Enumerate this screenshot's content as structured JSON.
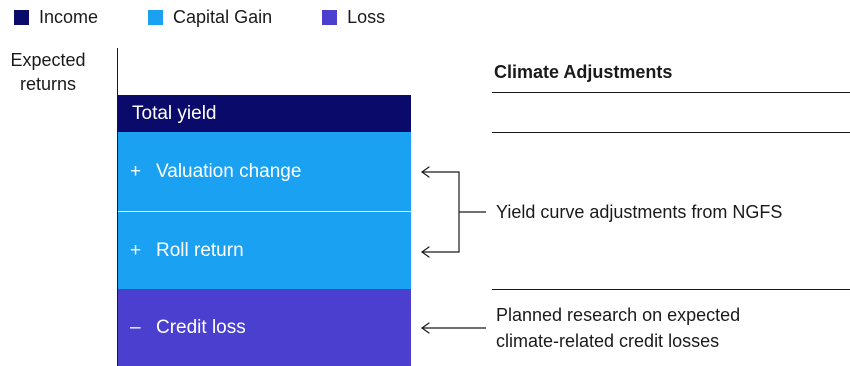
{
  "legend": {
    "items": [
      {
        "label": "Income",
        "color": "#0a0a6b"
      },
      {
        "label": "Capital Gain",
        "color": "#1ba1f2"
      },
      {
        "label": "Loss",
        "color": "#4b3fcf"
      }
    ]
  },
  "axis": {
    "label_line1": "Expected",
    "label_line2": "returns"
  },
  "stack": {
    "total_yield": {
      "sign": "",
      "label": "Total yield",
      "color": "#0a0a6b"
    },
    "valuation_change": {
      "sign": "+",
      "label": "Valuation change",
      "color": "#1ba1f2"
    },
    "roll_return": {
      "sign": "+",
      "label": "Roll return",
      "color": "#1ba1f2"
    },
    "credit_loss": {
      "sign": "–",
      "label": "Credit loss",
      "color": "#4b3fcf"
    }
  },
  "panel": {
    "title": "Climate Adjustments",
    "yield_note": "Yield curve adjustments from NGFS",
    "credit_note_line1": "Planned research on expected",
    "credit_note_line2": "climate-related credit losses"
  }
}
